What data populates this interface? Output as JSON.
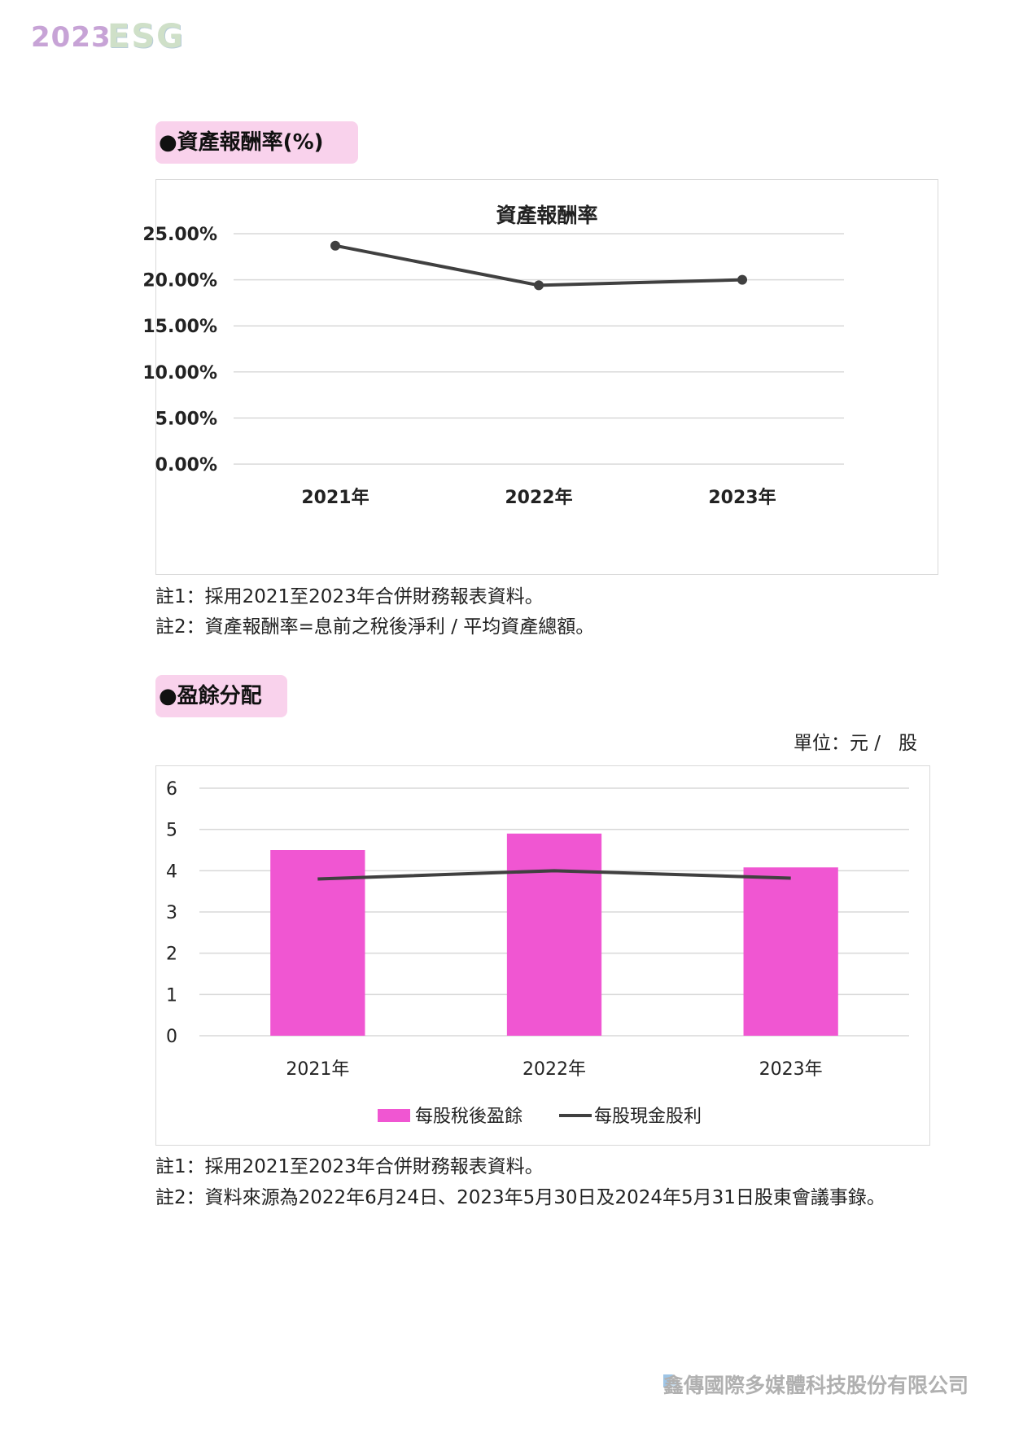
{
  "header": {
    "year": "2023",
    "logo_text": "ESG"
  },
  "section1": {
    "tag": "●資產報酬率(%)",
    "notes": [
      "註1：採用2021至2023年合併財務報表資料。",
      "註2：資產報酬率=息前之稅後淨利 / 平均資產總額。"
    ]
  },
  "section2": {
    "tag": "●盈餘分配",
    "unit": "單位：元 /   股",
    "notes": [
      "註1：採用2021至2023年合併財務報表資料。",
      "註2：資料來源為2022年6月24日、2023年5月30日及2024年5月31日股東會議事錄。"
    ]
  },
  "footer": {
    "company": "鑫傳國際多媒體科技股份有限公司"
  },
  "colors": {
    "bar": "#f056d2",
    "line": "#404040",
    "grid": "#d9d9d9",
    "tag_bg": "#f9d2ec"
  },
  "chart_data": [
    {
      "type": "line",
      "title": "資產報酬率",
      "categories": [
        "2021年",
        "2022年",
        "2023年"
      ],
      "series": [
        {
          "values": [
            23.7,
            19.4,
            20.0
          ],
          "color": "#404040"
        }
      ],
      "y_ticks": [
        "0.00%",
        "5.00%",
        "10.00%",
        "15.00%",
        "20.00%",
        "25.00%"
      ],
      "ylim": [
        0,
        25
      ],
      "grid": true
    },
    {
      "type": "bar",
      "categories": [
        "2021年",
        "2022年",
        "2023年"
      ],
      "series": [
        {
          "name": "每股稅後盈餘",
          "type": "bar",
          "values": [
            4.5,
            4.9,
            4.08
          ],
          "color": "#f056d2"
        },
        {
          "name": "每股現金股利",
          "type": "line",
          "values": [
            3.8,
            4.0,
            3.82
          ],
          "color": "#404040"
        }
      ],
      "y_ticks": [
        "0",
        "1",
        "2",
        "3",
        "4",
        "5",
        "6"
      ],
      "ylim": [
        0,
        6
      ],
      "grid": true,
      "legend": "bottom"
    }
  ]
}
